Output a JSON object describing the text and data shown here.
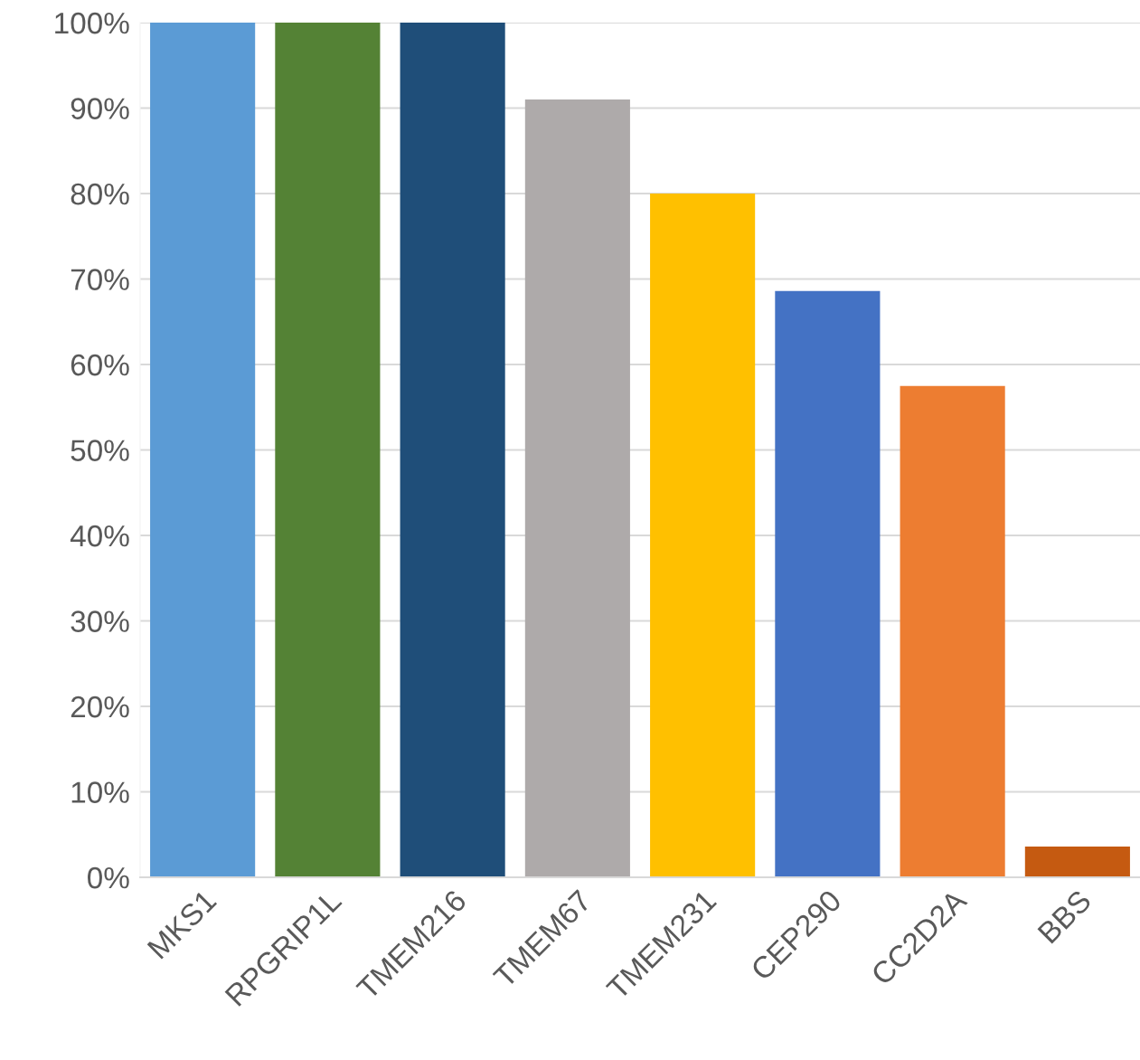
{
  "chart_data": {
    "type": "bar",
    "categories": [
      "MKS1",
      "RPGRIP1L",
      "TMEM216",
      "TMEM67",
      "TMEM231",
      "CEP290",
      "CC2D2A",
      "BBS"
    ],
    "values": [
      100,
      100,
      100,
      91,
      80,
      68.6,
      57.5,
      3.6
    ],
    "colors": [
      "#5b9bd5",
      "#548235",
      "#1f4e79",
      "#aeaaaa",
      "#ffc000",
      "#4472c4",
      "#ed7d31",
      "#c55a11"
    ],
    "ylim": [
      0,
      100
    ],
    "yticks": [
      {
        "value": 0,
        "label": "0%"
      },
      {
        "value": 10,
        "label": "10%"
      },
      {
        "value": 20,
        "label": "20%"
      },
      {
        "value": 30,
        "label": "30%"
      },
      {
        "value": 40,
        "label": "40%"
      },
      {
        "value": 50,
        "label": "50%"
      },
      {
        "value": 60,
        "label": "60%"
      },
      {
        "value": 70,
        "label": "70%"
      },
      {
        "value": 80,
        "label": "80%"
      },
      {
        "value": 90,
        "label": "90%"
      },
      {
        "value": 100,
        "label": "100%"
      }
    ],
    "grid": "y"
  }
}
